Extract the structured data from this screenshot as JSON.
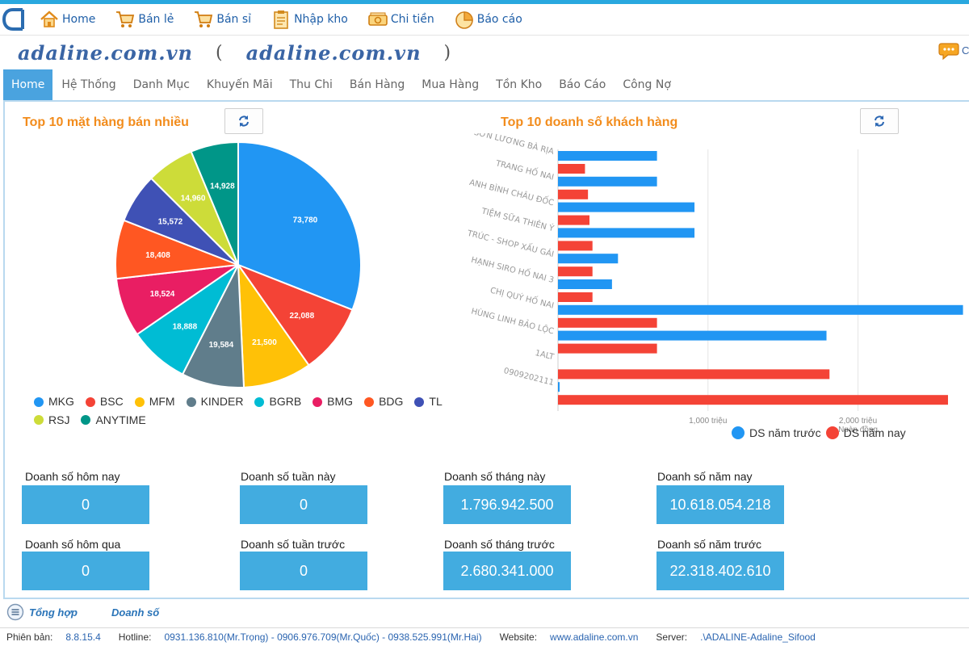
{
  "quick_toolbar": {
    "home": "Home",
    "retail": "Bán lẻ",
    "wholesale": "Bán sỉ",
    "import": "Nhập kho",
    "expense": "Chi tiền",
    "report": "Báo cáo"
  },
  "brand": {
    "site": "adaline.com.vn",
    "site2": "adaline.com.vn",
    "open_paren": "(",
    "close_paren": ")"
  },
  "chat_label": "C",
  "menu": [
    "Home",
    "Hệ Thống",
    "Danh Mục",
    "Khuyến Mãi",
    "Thu Chi",
    "Bán Hàng",
    "Mua Hàng",
    "Tồn Kho",
    "Báo Cáo",
    "Công Nợ"
  ],
  "pie_section": {
    "title": "Top 10 mặt hàng bán nhiều"
  },
  "bar_section": {
    "title": "Top 10 doanh số  khách hàng"
  },
  "chart_data": [
    {
      "type": "pie",
      "title": "Top 10 mặt hàng bán nhiều",
      "slices": [
        {
          "label": "MKG",
          "value": 73780,
          "display": "73,780",
          "color": "#2196f3"
        },
        {
          "label": "BSC",
          "value": 22088,
          "display": "22,088",
          "color": "#f44336"
        },
        {
          "label": "MFM",
          "value": 21500,
          "display": "21,500",
          "color": "#ffc107"
        },
        {
          "label": "KINDER",
          "value": 19584,
          "display": "19,584",
          "color": "#607d8b"
        },
        {
          "label": "BGRB",
          "value": 18888,
          "display": "18,888",
          "color": "#00bcd4"
        },
        {
          "label": "BMG",
          "value": 18524,
          "display": "18,524",
          "color": "#e91e63"
        },
        {
          "label": "BDG",
          "value": 18408,
          "display": "18,408",
          "color": "#ff5722"
        },
        {
          "label": "TL",
          "value": 15572,
          "display": "15,572",
          "color": "#3f51b5"
        },
        {
          "label": "RSJ",
          "value": 14960,
          "display": "14,960",
          "color": "#cddc39"
        },
        {
          "label": "ANYTIME",
          "value": 14928,
          "display": "14,928",
          "color": "#009688"
        }
      ]
    },
    {
      "type": "bar",
      "orientation": "horizontal",
      "title": "Top 10 doanh số  khách hàng",
      "categories": [
        "SƠN LƯƠNG BÀ RỊA",
        "TRANG HỐ NAI",
        "ANH BÌNH CHÂU ĐỐC",
        "TIỆM SỮA THIÊN Ý",
        "TRÚC - SHOP XẤU GÁI",
        "HẠNH SIRO HỐ NAI 3",
        "CHỊ QUÝ HỐ NAI",
        "HÙNG LINH BẢO LỘC",
        "1ALT",
        "0909202111"
      ],
      "series": [
        {
          "name": "DS năm trước",
          "color": "#2196f3",
          "values": [
            660,
            660,
            910,
            910,
            400,
            360,
            2700,
            1790,
            0,
            10
          ]
        },
        {
          "name": "DS năm nay",
          "color": "#f44336",
          "values": [
            180,
            200,
            210,
            230,
            230,
            230,
            660,
            660,
            1810,
            2600
          ]
        }
      ],
      "xticks": [
        {
          "value": 1000,
          "label": "1,000 triệu"
        },
        {
          "value": 2000,
          "label": "2,000 triệu"
        }
      ],
      "xunit": "Ngàn đồng",
      "xlim": [
        0,
        2740
      ],
      "grid": true,
      "legend": "bottom-right"
    }
  ],
  "stats": {
    "today_label": "Doanh số hôm nay",
    "today": "0",
    "week_label": "Doanh số tuần này",
    "week": "0",
    "month_label": "Doanh số tháng này",
    "month": "1.796.942.500",
    "year_label": "Doanh số năm nay",
    "year": "10.618.054.218",
    "yesterday_label": "Doanh số hôm qua",
    "yesterday": "0",
    "lastweek_label": "Doanh số tuần trước",
    "lastweek": "0",
    "lastmonth_label": "Doanh số tháng trước",
    "lastmonth": "2.680.341.000",
    "lastyear_label": "Doanh số năm trước",
    "lastyear": "22.318.402.610"
  },
  "bottom_tabs": {
    "summary": "Tổng hợp",
    "revenue": "Doanh số"
  },
  "status": {
    "version_label": "Phiên bản:",
    "version": "8.8.15.4",
    "hotline_label": "Hotline:",
    "hotline": "0931.136.810(Mr.Trọng) - 0906.976.709(Mr.Quốc) - 0938.525.991(Mr.Hai)",
    "website_label": "Website:",
    "website": "www.adaline.com.vn",
    "server_label": "Server:",
    "server": ".\\ADALINE-Adaline_Sifood"
  }
}
